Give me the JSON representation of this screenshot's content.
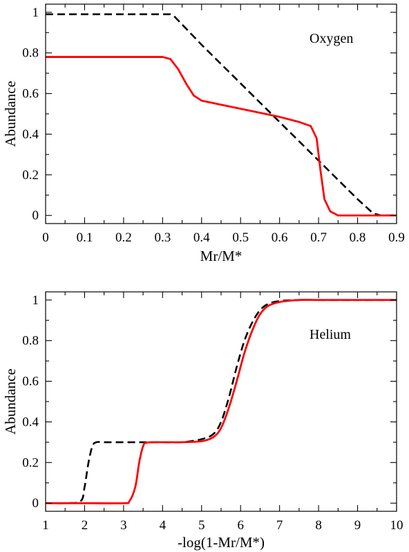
{
  "chart_data": [
    {
      "type": "line",
      "title": "",
      "annotation": "Oxygen",
      "xlabel": "Mr/M*",
      "ylabel": "Abundance",
      "xlim": [
        0,
        0.9
      ],
      "ylim": [
        -0.04,
        1.04
      ],
      "xticks": [
        0,
        0.1,
        0.2,
        0.3,
        0.4,
        0.5,
        0.6,
        0.7,
        0.8,
        0.9
      ],
      "xtick_labels": [
        "0",
        "0.1",
        "0.2",
        "0.3",
        "0.4",
        "0.5",
        "0.6",
        "0.7",
        "0.8",
        "0.9"
      ],
      "yticks": [
        0,
        0.2,
        0.4,
        0.6,
        0.8,
        1
      ],
      "ytick_labels": [
        "0",
        "0.2",
        "0.4",
        "0.6",
        "0.8",
        "1"
      ],
      "grid": false,
      "series": [
        {
          "style": "dashed",
          "color": "#000000",
          "x": [
            0,
            0.1,
            0.2,
            0.3,
            0.32,
            0.33,
            0.35,
            0.4,
            0.5,
            0.6,
            0.7,
            0.8,
            0.84,
            0.86,
            0.9
          ],
          "y": [
            0.99,
            0.99,
            0.99,
            0.99,
            0.99,
            0.98,
            0.94,
            0.84,
            0.65,
            0.46,
            0.27,
            0.08,
            0.01,
            0.0,
            0.0
          ]
        },
        {
          "style": "solid",
          "color": "#ff0000",
          "x": [
            0,
            0.1,
            0.2,
            0.3,
            0.32,
            0.34,
            0.36,
            0.38,
            0.4,
            0.45,
            0.5,
            0.55,
            0.6,
            0.65,
            0.68,
            0.695,
            0.705,
            0.715,
            0.73,
            0.75,
            0.8,
            0.9
          ],
          "y": [
            0.78,
            0.78,
            0.78,
            0.78,
            0.77,
            0.72,
            0.65,
            0.59,
            0.565,
            0.545,
            0.525,
            0.505,
            0.485,
            0.46,
            0.44,
            0.38,
            0.22,
            0.08,
            0.02,
            0.0,
            0.0,
            0.0
          ]
        }
      ]
    },
    {
      "type": "line",
      "title": "",
      "annotation": "Helium",
      "xlabel": "-log(1-Mr/M*)",
      "ylabel": "Abundance",
      "xlim": [
        1,
        10
      ],
      "ylim": [
        -0.04,
        1.04
      ],
      "xticks": [
        1,
        2,
        3,
        4,
        5,
        6,
        7,
        8,
        9,
        10
      ],
      "xtick_labels": [
        "1",
        "2",
        "3",
        "4",
        "5",
        "6",
        "7",
        "8",
        "9",
        "10"
      ],
      "yticks": [
        0,
        0.2,
        0.4,
        0.6,
        0.8,
        1
      ],
      "ytick_labels": [
        "0",
        "0.2",
        "0.4",
        "0.6",
        "0.8",
        "1"
      ],
      "grid": false,
      "series": [
        {
          "style": "dashed",
          "color": "#000000",
          "x": [
            1,
            1.5,
            1.9,
            2.0,
            2.1,
            2.2,
            2.3,
            2.5,
            3,
            3.5,
            4,
            4.5,
            5,
            5.3,
            5.5,
            5.7,
            5.9,
            6.1,
            6.3,
            6.5,
            6.7,
            7,
            7.5,
            8,
            9,
            10
          ],
          "y": [
            0,
            0,
            0.01,
            0.08,
            0.2,
            0.28,
            0.3,
            0.3,
            0.3,
            0.3,
            0.3,
            0.3,
            0.315,
            0.34,
            0.4,
            0.52,
            0.67,
            0.8,
            0.89,
            0.95,
            0.98,
            0.995,
            1.0,
            1.0,
            1.0,
            1.0
          ],
          "smooth": true
        },
        {
          "style": "solid",
          "color": "#ff0000",
          "x": [
            1,
            2,
            3,
            3.15,
            3.3,
            3.4,
            3.5,
            3.6,
            4,
            4.5,
            5,
            5.3,
            5.5,
            5.7,
            5.9,
            6.1,
            6.3,
            6.5,
            6.7,
            7,
            7.5,
            8,
            9,
            10
          ],
          "y": [
            0,
            0,
            0,
            0.01,
            0.08,
            0.2,
            0.28,
            0.298,
            0.3,
            0.3,
            0.305,
            0.325,
            0.37,
            0.47,
            0.6,
            0.74,
            0.85,
            0.93,
            0.97,
            0.99,
            1.0,
            1.0,
            1.0,
            1.0
          ],
          "smooth": true
        }
      ]
    }
  ]
}
